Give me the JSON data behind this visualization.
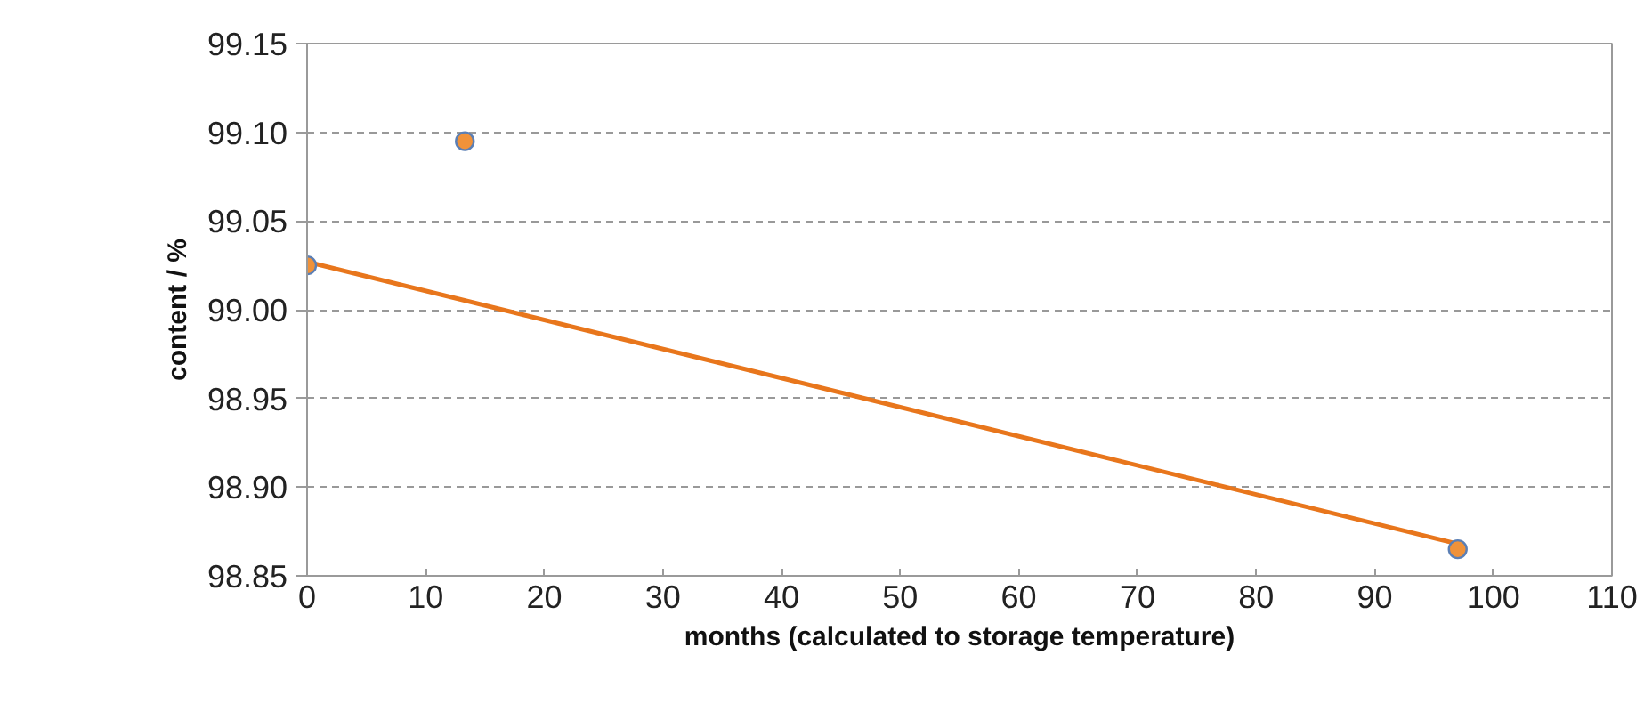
{
  "chart_data": {
    "type": "scatter",
    "xlabel": "months (calculated to storage temperature)",
    "ylabel": "content / %",
    "series": [
      {
        "color": "#f0923a",
        "x": [
          0,
          13.3,
          97
        ],
        "values": [
          99.025,
          99.095,
          98.865
        ],
        "marker": "circle"
      },
      {
        "type": "line",
        "color": "#e8761c",
        "x": [
          0,
          97
        ],
        "values": [
          99.027,
          98.868
        ],
        "marker": "none"
      }
    ],
    "xlim": [
      0,
      110
    ],
    "ylim": [
      98.85,
      99.15
    ],
    "xticks": [
      0,
      10,
      20,
      30,
      40,
      50,
      60,
      70,
      80,
      90,
      100,
      110
    ],
    "yticks": [
      {
        "value": 98.85,
        "label": "98.85"
      },
      {
        "value": 98.9,
        "label": "98.90"
      },
      {
        "value": 98.95,
        "label": "98.95"
      },
      {
        "value": 99.0,
        "label": "99.00"
      },
      {
        "value": 99.05,
        "label": "99.05"
      },
      {
        "value": 99.1,
        "label": "99.10"
      },
      {
        "value": 99.15,
        "label": "99.15"
      }
    ],
    "grid": "y"
  }
}
